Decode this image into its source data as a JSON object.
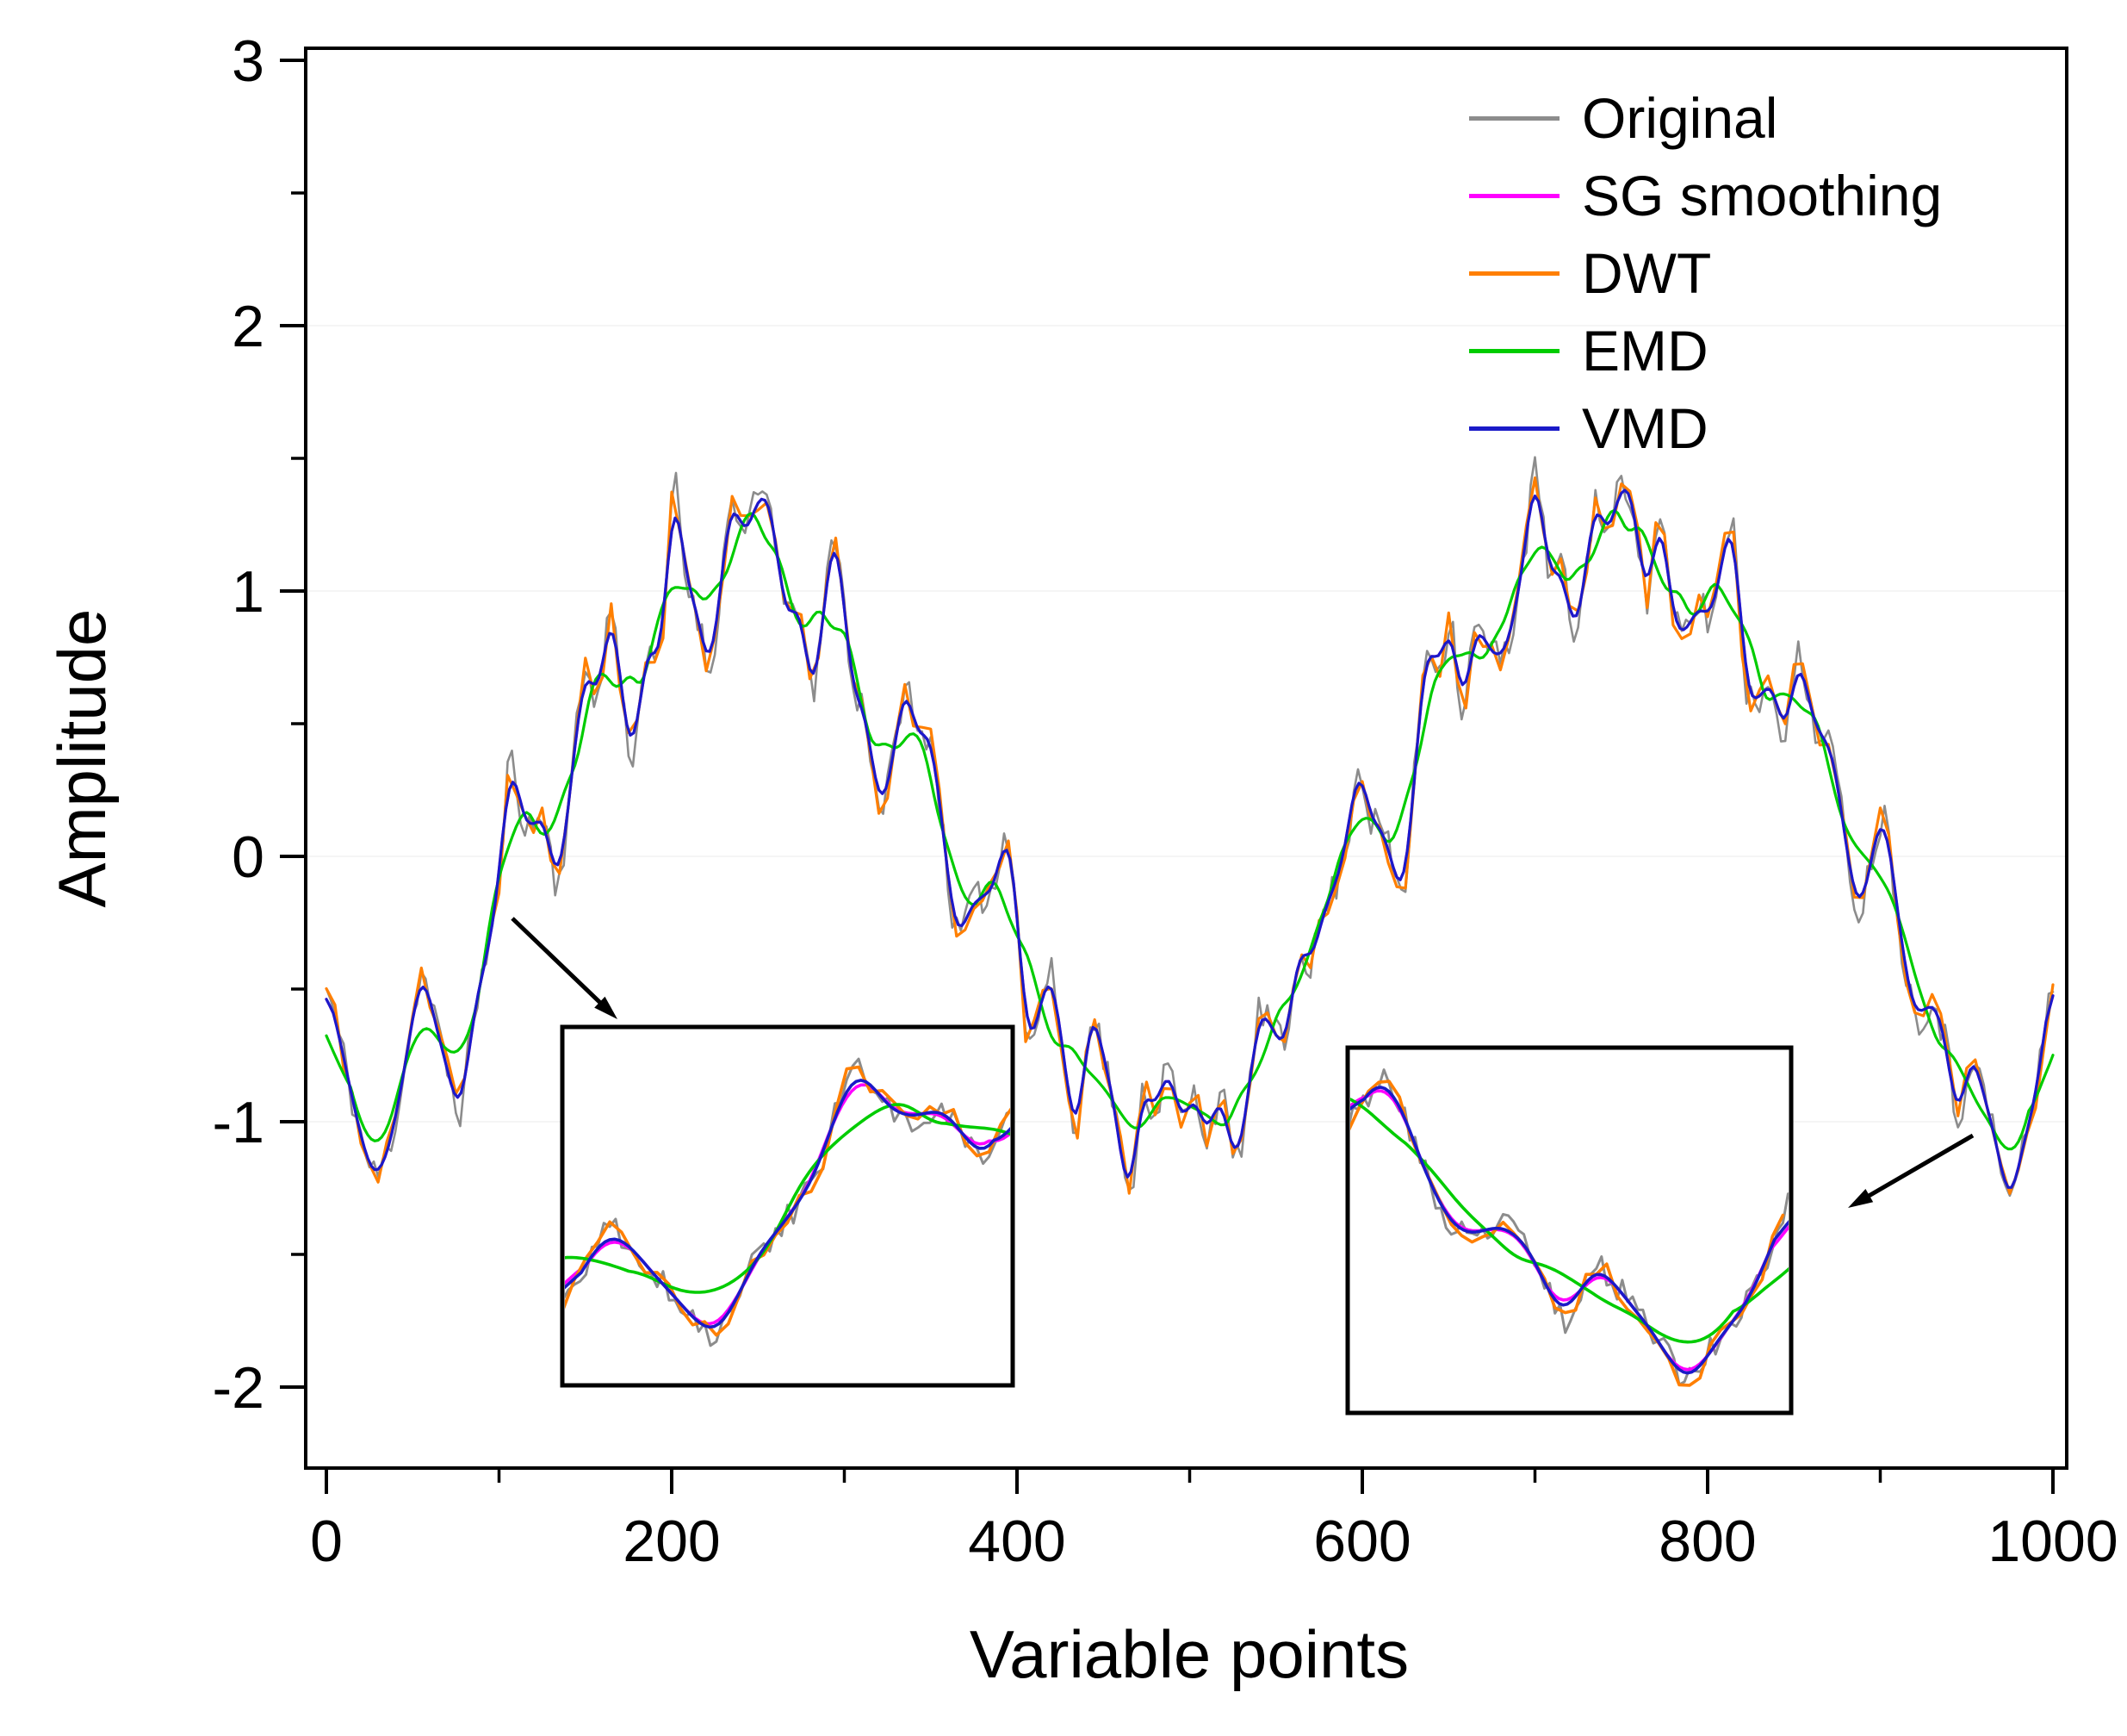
{
  "chart_data": {
    "type": "line",
    "title": "",
    "xlabel": "Variable points",
    "ylabel": "Amplitude",
    "xlim": [
      0,
      1000
    ],
    "ylim": [
      -2,
      3
    ],
    "xticks": [
      0,
      200,
      400,
      600,
      800,
      1000
    ],
    "yticks": [
      -2,
      -1,
      0,
      1,
      2,
      3
    ],
    "x_minor_step": 100,
    "y_minor_step": 0.5,
    "grid": false,
    "legend_position": "top-right-inside",
    "series": [
      {
        "name": "Original",
        "color": "#8c8c8c",
        "noise": 0.07,
        "noise_step": 2.5,
        "smooth": 0,
        "width": 2.6,
        "seed": 11
      },
      {
        "name": "SG smoothing",
        "color": "#ff00ff",
        "noise": 0,
        "noise_step": 6,
        "smooth": 9,
        "width": 3.2,
        "seed": 23
      },
      {
        "name": "DWT",
        "color": "#ff7f00",
        "noise": 0.05,
        "noise_step": 5,
        "smooth": 0,
        "width": 3.2,
        "seed": 37
      },
      {
        "name": "EMD",
        "color": "#00cc00",
        "noise": 0,
        "noise_step": 6,
        "smooth": 27,
        "width": 3.2,
        "seed": 5
      },
      {
        "name": "VMD",
        "color": "#1a1ac8",
        "noise": 0,
        "noise_step": 6,
        "smooth": 7,
        "width": 3.2,
        "seed": 9
      }
    ],
    "base_curve": {
      "x": [
        0,
        8,
        18,
        28,
        38,
        48,
        55,
        62,
        70,
        78,
        85,
        92,
        100,
        106,
        112,
        118,
        126,
        134,
        142,
        150,
        158,
        165,
        172,
        178,
        186,
        194,
        201,
        208,
        214,
        222,
        228,
        235,
        242,
        250,
        258,
        266,
        274,
        282,
        290,
        296,
        304,
        312,
        320,
        328,
        335,
        342,
        350,
        358,
        365,
        372,
        380,
        388,
        394,
        400,
        406,
        412,
        420,
        428,
        435,
        442,
        450,
        458,
        465,
        472,
        480,
        488,
        495,
        503,
        510,
        518,
        526,
        533,
        540,
        548,
        556,
        563,
        570,
        578,
        585,
        592,
        598,
        604,
        612,
        618,
        625,
        632,
        638,
        645,
        651,
        658,
        665,
        672,
        680,
        688,
        695,
        701,
        708,
        715,
        722,
        728,
        735,
        742,
        750,
        758,
        765,
        772,
        780,
        788,
        795,
        802,
        808,
        815,
        822,
        830,
        838,
        845,
        852,
        858,
        865,
        872,
        880,
        888,
        895,
        902,
        908,
        915,
        922,
        930,
        938,
        945,
        952,
        960,
        968,
        975,
        982,
        990,
        1000
      ],
      "y": [
        -0.5,
        -0.7,
        -1.0,
        -1.2,
        -1.05,
        -0.7,
        -0.45,
        -0.6,
        -0.8,
        -0.95,
        -0.6,
        -0.4,
        -0.1,
        0.35,
        0.2,
        0.1,
        0.15,
        -0.1,
        0.3,
        0.7,
        0.6,
        0.95,
        0.55,
        0.4,
        0.8,
        0.75,
        1.4,
        1.05,
        0.95,
        0.7,
        1.0,
        1.35,
        1.2,
        1.35,
        1.3,
        0.9,
        0.95,
        0.6,
        1.05,
        1.2,
        0.65,
        0.55,
        0.2,
        0.35,
        0.65,
        0.45,
        0.45,
        0.05,
        -0.3,
        -0.2,
        -0.15,
        -0.1,
        0.1,
        -0.2,
        -0.7,
        -0.6,
        -0.45,
        -0.8,
        -1.05,
        -0.6,
        -0.75,
        -1.0,
        -1.3,
        -0.9,
        -0.95,
        -0.8,
        -1.0,
        -0.9,
        -1.05,
        -0.9,
        -1.15,
        -0.95,
        -0.6,
        -0.65,
        -0.7,
        -0.35,
        -0.4,
        -0.2,
        -0.1,
        0.1,
        0.35,
        0.15,
        0.1,
        -0.05,
        -0.1,
        0.45,
        0.8,
        0.7,
        0.9,
        0.55,
        0.85,
        0.8,
        0.75,
        0.9,
        1.2,
        1.45,
        1.05,
        1.1,
        0.85,
        1.0,
        1.35,
        1.2,
        1.4,
        1.3,
        0.95,
        1.3,
        0.9,
        0.85,
        0.95,
        0.9,
        1.1,
        1.25,
        0.65,
        0.6,
        0.65,
        0.45,
        0.75,
        0.6,
        0.45,
        0.4,
        0.05,
        -0.2,
        0.0,
        0.15,
        -0.1,
        -0.45,
        -0.6,
        -0.55,
        -0.7,
        -1.0,
        -0.75,
        -0.9,
        -1.1,
        -1.3,
        -1.1,
        -0.9,
        -0.45
      ]
    },
    "insets": [
      {
        "name": "inset-zoom-left",
        "x_range": [
          45,
          140
        ],
        "y_range": [
          -1.2,
          0.55
        ]
      },
      {
        "name": "inset-zoom-right",
        "x_range": [
          893,
          1000
        ],
        "y_range": [
          -1.45,
          0.3
        ]
      }
    ]
  }
}
